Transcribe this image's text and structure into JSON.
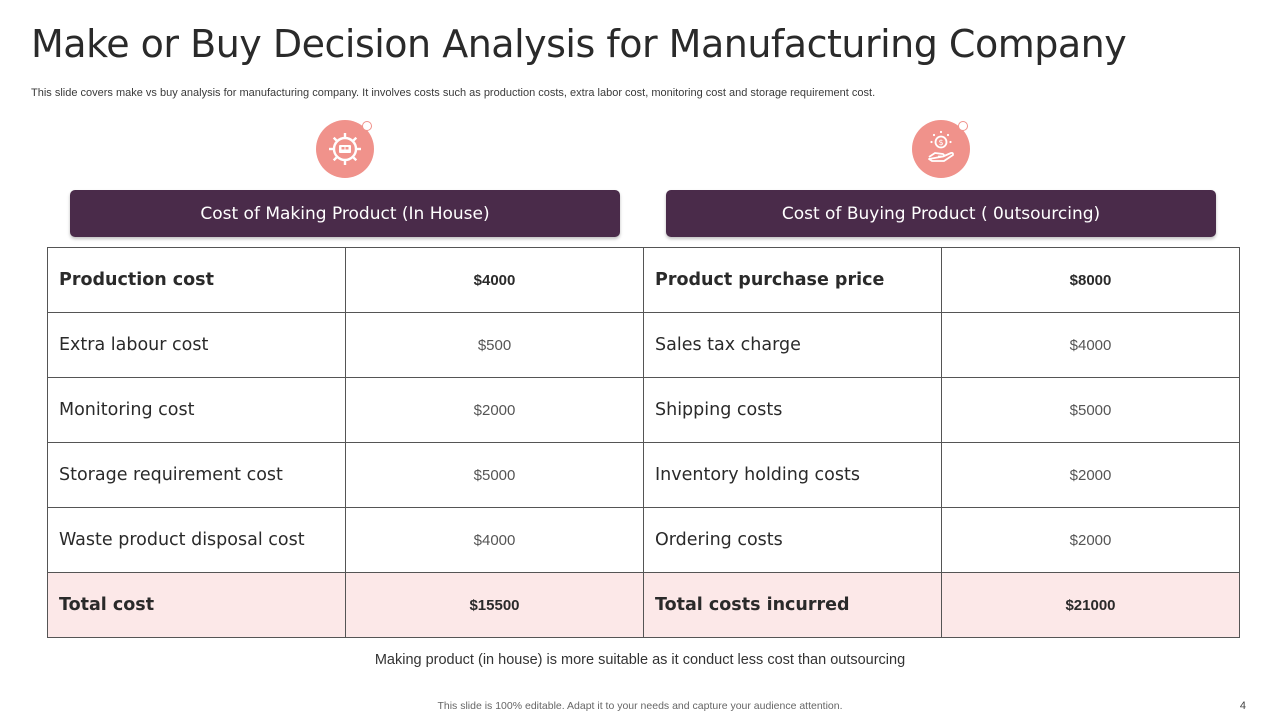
{
  "title": "Make or Buy Decision Analysis for Manufacturing Company",
  "subtitle": "This slide covers make vs buy analysis for manufacturing company. It involves costs such as production costs, extra labor cost, monitoring cost and storage requirement cost.",
  "icons": {
    "make": "gear-settings-icon",
    "buy": "hand-money-icon"
  },
  "headers": {
    "make": "Cost of Making Product (In House)",
    "buy": "Cost of Buying Product ( 0utsourcing)"
  },
  "rows": [
    {
      "make_label": "Production cost",
      "make_value": "$4000",
      "buy_label": "Product purchase price",
      "buy_value": "$8000"
    },
    {
      "make_label": "Extra labour cost",
      "make_value": "$500",
      "buy_label": "Sales tax charge",
      "buy_value": "$4000"
    },
    {
      "make_label": "Monitoring cost",
      "make_value": "$2000",
      "buy_label": "Shipping costs",
      "buy_value": "$5000"
    },
    {
      "make_label": "Storage requirement cost",
      "make_value": "$5000",
      "buy_label": "Inventory holding costs",
      "buy_value": "$2000"
    },
    {
      "make_label": "Waste product disposal cost",
      "make_value": "$4000",
      "buy_label": "Ordering costs",
      "buy_value": "$2000"
    },
    {
      "make_label": "Total cost",
      "make_value": "$15500",
      "buy_label": "Total costs incurred",
      "buy_value": "$21000"
    }
  ],
  "conclusion": "Making product (in house) is more suitable as it conduct less cost than outsourcing",
  "footer": "This slide is 100% editable. Adapt it to your needs and capture your audience attention.",
  "page_number": "4",
  "colors": {
    "header_bg": "#4a2b4a",
    "icon_bg": "#f0928b",
    "total_row_bg": "#fce8e8"
  }
}
